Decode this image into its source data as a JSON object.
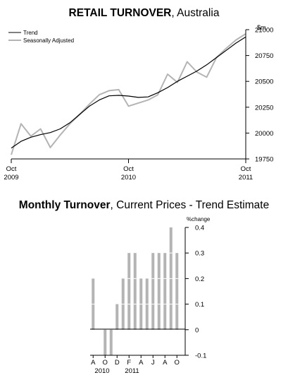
{
  "chart1": {
    "title_bold": "RETAIL TURNOVER",
    "title_rest": ", Australia",
    "unit": "$m",
    "legend": [
      "Trend",
      "Seasonally Adjusted"
    ],
    "colors": {
      "trend": "#000000",
      "seasonal": "#b4b4b4"
    },
    "x_ticks": [
      {
        "month": "Oct",
        "year": "2009"
      },
      {
        "month": "Oct",
        "year": "2010"
      },
      {
        "month": "Oct",
        "year": "2011"
      }
    ],
    "y_ticks": [
      "21000",
      "20750",
      "20500",
      "20250",
      "20000",
      "19750"
    ]
  },
  "chart2": {
    "title_bold": "Monthly Turnover",
    "title_rest": ", Current Prices - Trend Estimate",
    "unit": "%change",
    "bar_color": "#b4b4b4",
    "x_labels": [
      "A",
      "O",
      "D",
      "F",
      "A",
      "J",
      "A",
      "O"
    ],
    "year_labels": [
      "2010",
      "2011"
    ],
    "y_ticks": [
      "0.4",
      "0.3",
      "0.2",
      "0.1",
      "0",
      "-0.1"
    ]
  },
  "chart_data": [
    {
      "type": "line",
      "title": "RETAIL TURNOVER, Australia",
      "ylabel": "$m",
      "ylim": [
        19750,
        21000
      ],
      "grid": false,
      "legend_position": "top-left",
      "x": [
        "Oct 2009",
        "Nov 2009",
        "Dec 2009",
        "Jan 2010",
        "Feb 2010",
        "Mar 2010",
        "Apr 2010",
        "May 2010",
        "Jun 2010",
        "Jul 2010",
        "Aug 2010",
        "Sep 2010",
        "Oct 2010",
        "Nov 2010",
        "Dec 2010",
        "Jan 2011",
        "Feb 2011",
        "Mar 2011",
        "Apr 2011",
        "May 2011",
        "Jun 2011",
        "Jul 2011",
        "Aug 2011",
        "Sep 2011",
        "Oct 2011"
      ],
      "series": [
        {
          "name": "Trend",
          "values": [
            19855,
            19920,
            19960,
            19985,
            20005,
            20040,
            20100,
            20180,
            20260,
            20320,
            20360,
            20365,
            20358,
            20345,
            20350,
            20390,
            20440,
            20500,
            20550,
            20600,
            20660,
            20730,
            20800,
            20870,
            20930
          ]
        },
        {
          "name": "Seasonally Adjusted",
          "values": [
            19790,
            20090,
            19970,
            20040,
            19860,
            19980,
            20090,
            20180,
            20280,
            20370,
            20410,
            20420,
            20260,
            20290,
            20320,
            20370,
            20570,
            20490,
            20690,
            20590,
            20540,
            20730,
            20820,
            20900,
            20960
          ]
        }
      ]
    },
    {
      "type": "bar",
      "title": "Monthly Turnover, Current Prices - Trend Estimate",
      "ylabel": "%change",
      "ylim": [
        -0.1,
        0.4
      ],
      "categories": [
        "Aug 2010",
        "Sep 2010",
        "Oct 2010",
        "Nov 2010",
        "Dec 2010",
        "Jan 2011",
        "Feb 2011",
        "Mar 2011",
        "Apr 2011",
        "May 2011",
        "Jun 2011",
        "Jul 2011",
        "Aug 2011",
        "Sep 2011",
        "Oct 2011"
      ],
      "values": [
        0.2,
        0.0,
        -0.1,
        -0.1,
        0.1,
        0.2,
        0.3,
        0.3,
        0.2,
        0.2,
        0.3,
        0.3,
        0.3,
        0.4,
        0.3
      ]
    }
  ]
}
